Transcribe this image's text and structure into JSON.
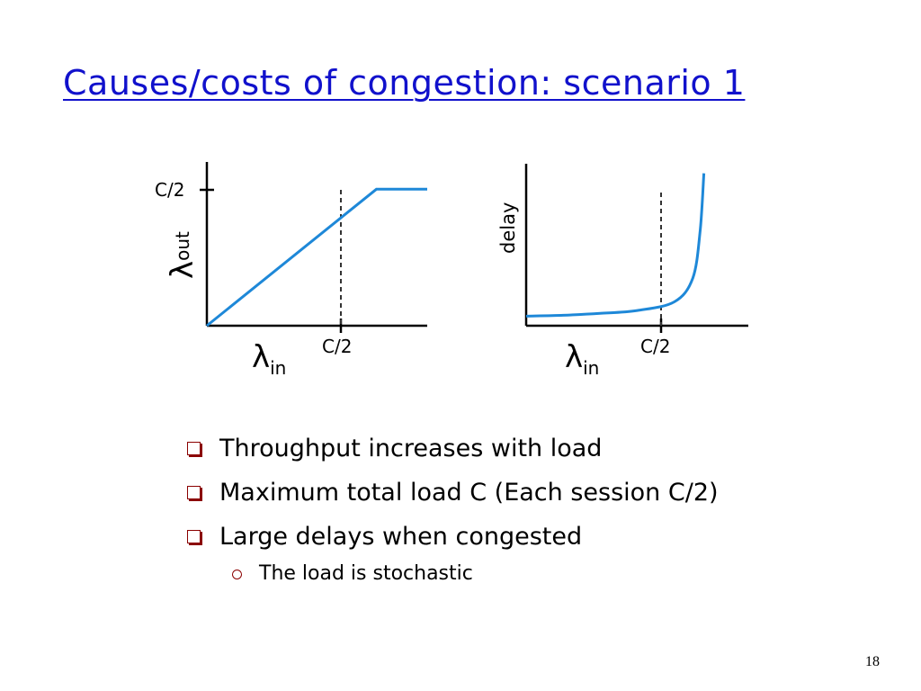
{
  "slide": {
    "title": "Causes/costs of congestion: scenario 1",
    "page_number": "18"
  },
  "chart_data": [
    {
      "type": "line",
      "title": "",
      "xlabel_symbol": "λ",
      "xlabel_subscript": "in",
      "ylabel_symbol": "λ",
      "ylabel_subscript": "out",
      "x_tick_label": "C/2",
      "y_tick_label": "C/2",
      "x": [
        0,
        0.5,
        0.55,
        0.65
      ],
      "y": [
        0,
        0.5,
        0.5,
        0.5
      ],
      "xlim": [
        0,
        0.65
      ],
      "ylim": [
        0,
        0.6
      ],
      "reference_line": "dashed vertical at x = C/2",
      "line_color": "#1e88d8"
    },
    {
      "type": "line",
      "title": "",
      "xlabel_symbol": "λ",
      "xlabel_subscript": "in",
      "ylabel": "delay",
      "x_tick_label": "C/2",
      "x": [
        0,
        0.1,
        0.2,
        0.3,
        0.4,
        0.45,
        0.47,
        0.48
      ],
      "y": [
        1.0,
        1.1,
        1.3,
        1.6,
        2.5,
        5.0,
        10.0,
        16.0
      ],
      "xlim": [
        0,
        0.6
      ],
      "ylim": [
        0,
        17
      ],
      "asymptote": "dashed vertical at x = C/2",
      "line_color": "#1e88d8"
    }
  ],
  "bullets": [
    "Throughput increases with load",
    "Maximum total load C (Each session C/2)",
    "Large delays when congested"
  ],
  "sub_bullets": [
    "The load is stochastic"
  ]
}
